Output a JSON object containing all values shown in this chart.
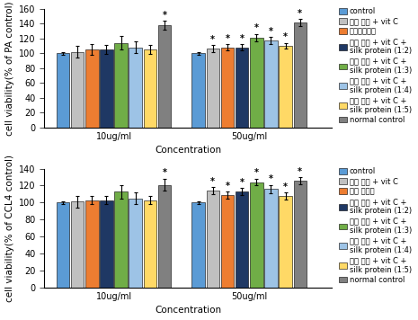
{
  "top": {
    "ylabel": "cell viability(% of PA control)",
    "xlabel": "Concentration",
    "ylim": [
      0,
      160
    ],
    "yticks": [
      0,
      20,
      40,
      60,
      80,
      100,
      120,
      140,
      160
    ],
    "groups": [
      "10ug/ml",
      "50ug/ml"
    ],
    "bars": [
      {
        "label": "control",
        "color": "#5B9BD5",
        "values": [
          100,
          100
        ],
        "errors": [
          2,
          2
        ]
      },
      {
        "label": "대성 열수 + vit C",
        "color": "#C0C0C0",
        "values": [
          102,
          106
        ],
        "errors": [
          8,
          5
        ]
      },
      {
        "label": "실크아미노산",
        "color": "#ED7D31",
        "values": [
          105,
          108
        ],
        "errors": [
          7,
          4
        ]
      },
      {
        "label": "대성 열수 + vit C +\nsilk protein (1:2)",
        "color": "#1F3864",
        "values": [
          105,
          108
        ],
        "errors": [
          6,
          4
        ]
      },
      {
        "label": "대성 열수 + vit C +\nsilk protein (1:3)",
        "color": "#70AD47",
        "values": [
          114,
          121
        ],
        "errors": [
          9,
          5
        ]
      },
      {
        "label": "대성 열수 + vit C +\nsilk protein (1:4)",
        "color": "#9DC3E6",
        "values": [
          108,
          117
        ],
        "errors": [
          8,
          5
        ]
      },
      {
        "label": "대성 열수 + vit C +\nsilk protein (1:5)",
        "color": "#FFD966",
        "values": [
          105,
          110
        ],
        "errors": [
          6,
          4
        ]
      },
      {
        "label": "normal control",
        "color": "#808080",
        "values": [
          138,
          141
        ],
        "errors": [
          6,
          5
        ]
      }
    ],
    "sig_map": {
      "0": [
        7
      ],
      "1": [
        1,
        2,
        3,
        4,
        5,
        6,
        7
      ]
    }
  },
  "bottom": {
    "ylabel": "cell viability(% of CCL4 control)",
    "xlabel": "Concentration",
    "ylim": [
      0,
      140
    ],
    "yticks": [
      0,
      20,
      40,
      60,
      80,
      100,
      120,
      140
    ],
    "groups": [
      "10ug/ml",
      "50ug/ml"
    ],
    "bars": [
      {
        "label": "control",
        "color": "#5B9BD5",
        "values": [
          100,
          100
        ],
        "errors": [
          2,
          2
        ]
      },
      {
        "label": "대성 열수 + vit C",
        "color": "#C0C0C0",
        "values": [
          101,
          114
        ],
        "errors": [
          7,
          4
        ]
      },
      {
        "label": "실크 단백질",
        "color": "#ED7D31",
        "values": [
          103,
          109
        ],
        "errors": [
          5,
          4
        ]
      },
      {
        "label": "대성 열수 + vit C +\nsilk protein (1:2)",
        "color": "#1F3864",
        "values": [
          103,
          113
        ],
        "errors": [
          5,
          4
        ]
      },
      {
        "label": "대성 열수 + vit C +\nsilk protein (1:3)",
        "color": "#70AD47",
        "values": [
          113,
          124
        ],
        "errors": [
          8,
          4
        ]
      },
      {
        "label": "대성 열수 + vit C +\nsilk protein (1:4)",
        "color": "#9DC3E6",
        "values": [
          105,
          116
        ],
        "errors": [
          7,
          5
        ]
      },
      {
        "label": "대성 열수 + vit C +\nsilk protein (1:5)",
        "color": "#FFD966",
        "values": [
          103,
          108
        ],
        "errors": [
          5,
          4
        ]
      },
      {
        "label": "normal control",
        "color": "#808080",
        "values": [
          121,
          126
        ],
        "errors": [
          7,
          4
        ]
      }
    ],
    "sig_map": {
      "0": [
        7
      ],
      "1": [
        1,
        2,
        3,
        4,
        5,
        6,
        7
      ]
    }
  },
  "legend_fontsize": 6.0,
  "tick_fontsize": 7,
  "label_fontsize": 7.5,
  "bar_width": 0.088,
  "group_centers": [
    0.38,
    1.2
  ]
}
